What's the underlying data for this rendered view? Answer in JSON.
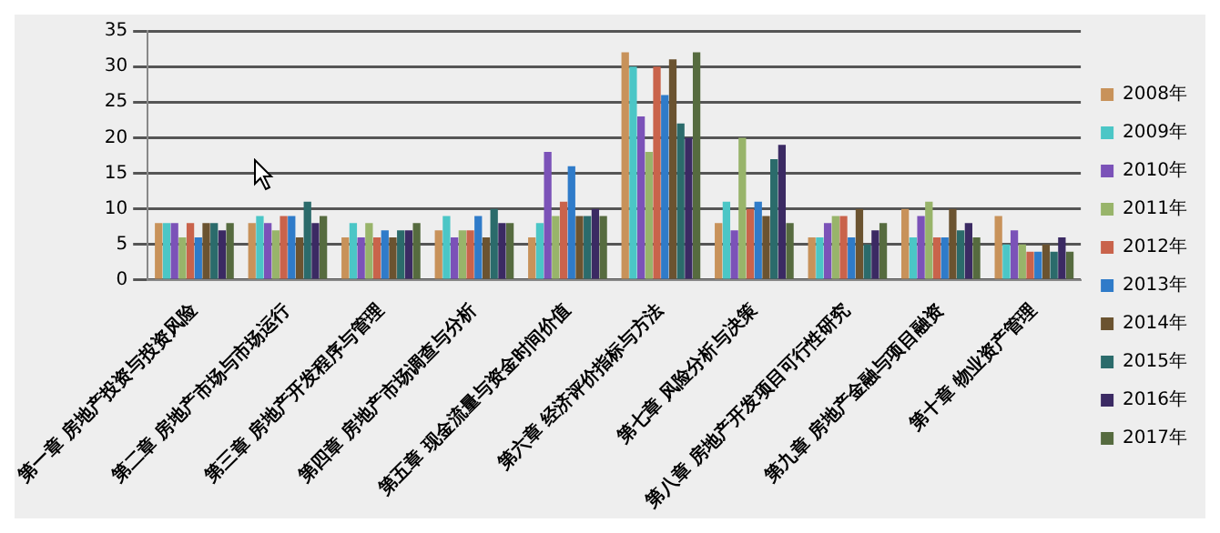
{
  "chart_data": {
    "type": "bar",
    "categories": [
      "第一章 房地产投资与投资风险",
      "第二章 房地产市场与市场运行",
      "第三章 房地产开发程序与管理",
      "第四章 房地产市场调查与分析",
      "第五章 现金流量与资金时间价值",
      "第六章 经济评价指标与方法",
      "第七章 风险分析与决策",
      "第八章 房地产开发项目可行性研究",
      "第九章 房地产金融与项目融资",
      "第十章 物业资产管理"
    ],
    "series": [
      {
        "name": "2008年",
        "color": "#c8925a",
        "values": [
          8,
          8,
          6,
          7,
          6,
          32,
          8,
          6,
          10,
          9
        ]
      },
      {
        "name": "2009年",
        "color": "#4bc6c6",
        "values": [
          8,
          9,
          8,
          9,
          8,
          30,
          11,
          6,
          6,
          5
        ]
      },
      {
        "name": "2010年",
        "color": "#7b52b8",
        "values": [
          8,
          8,
          6,
          6,
          18,
          23,
          7,
          8,
          9,
          7
        ]
      },
      {
        "name": "2011年",
        "color": "#98b46a",
        "values": [
          6,
          7,
          8,
          7,
          9,
          18,
          20,
          9,
          11,
          5
        ]
      },
      {
        "name": "2012年",
        "color": "#c9634b",
        "values": [
          8,
          9,
          6,
          7,
          11,
          30,
          10,
          9,
          6,
          4
        ]
      },
      {
        "name": "2013年",
        "color": "#2f7bc9",
        "values": [
          6,
          9,
          7,
          9,
          16,
          26,
          11,
          6,
          6,
          4
        ]
      },
      {
        "name": "2014年",
        "color": "#6b5330",
        "values": [
          8,
          6,
          6,
          6,
          9,
          31,
          9,
          10,
          10,
          5
        ]
      },
      {
        "name": "2015年",
        "color": "#2b6b6b",
        "values": [
          8,
          11,
          7,
          10,
          9,
          22,
          17,
          5,
          7,
          4
        ]
      },
      {
        "name": "2016年",
        "color": "#3b2a63",
        "values": [
          7,
          8,
          7,
          8,
          10,
          20,
          19,
          7,
          8,
          6
        ]
      },
      {
        "name": "2017年",
        "color": "#566b3f",
        "values": [
          8,
          9,
          8,
          8,
          9,
          32,
          8,
          8,
          6,
          4
        ]
      }
    ],
    "ylim": [
      0,
      35
    ],
    "yticks": [
      0,
      5,
      10,
      15,
      20,
      25,
      30,
      35
    ],
    "grid": "y",
    "legend": "right"
  }
}
